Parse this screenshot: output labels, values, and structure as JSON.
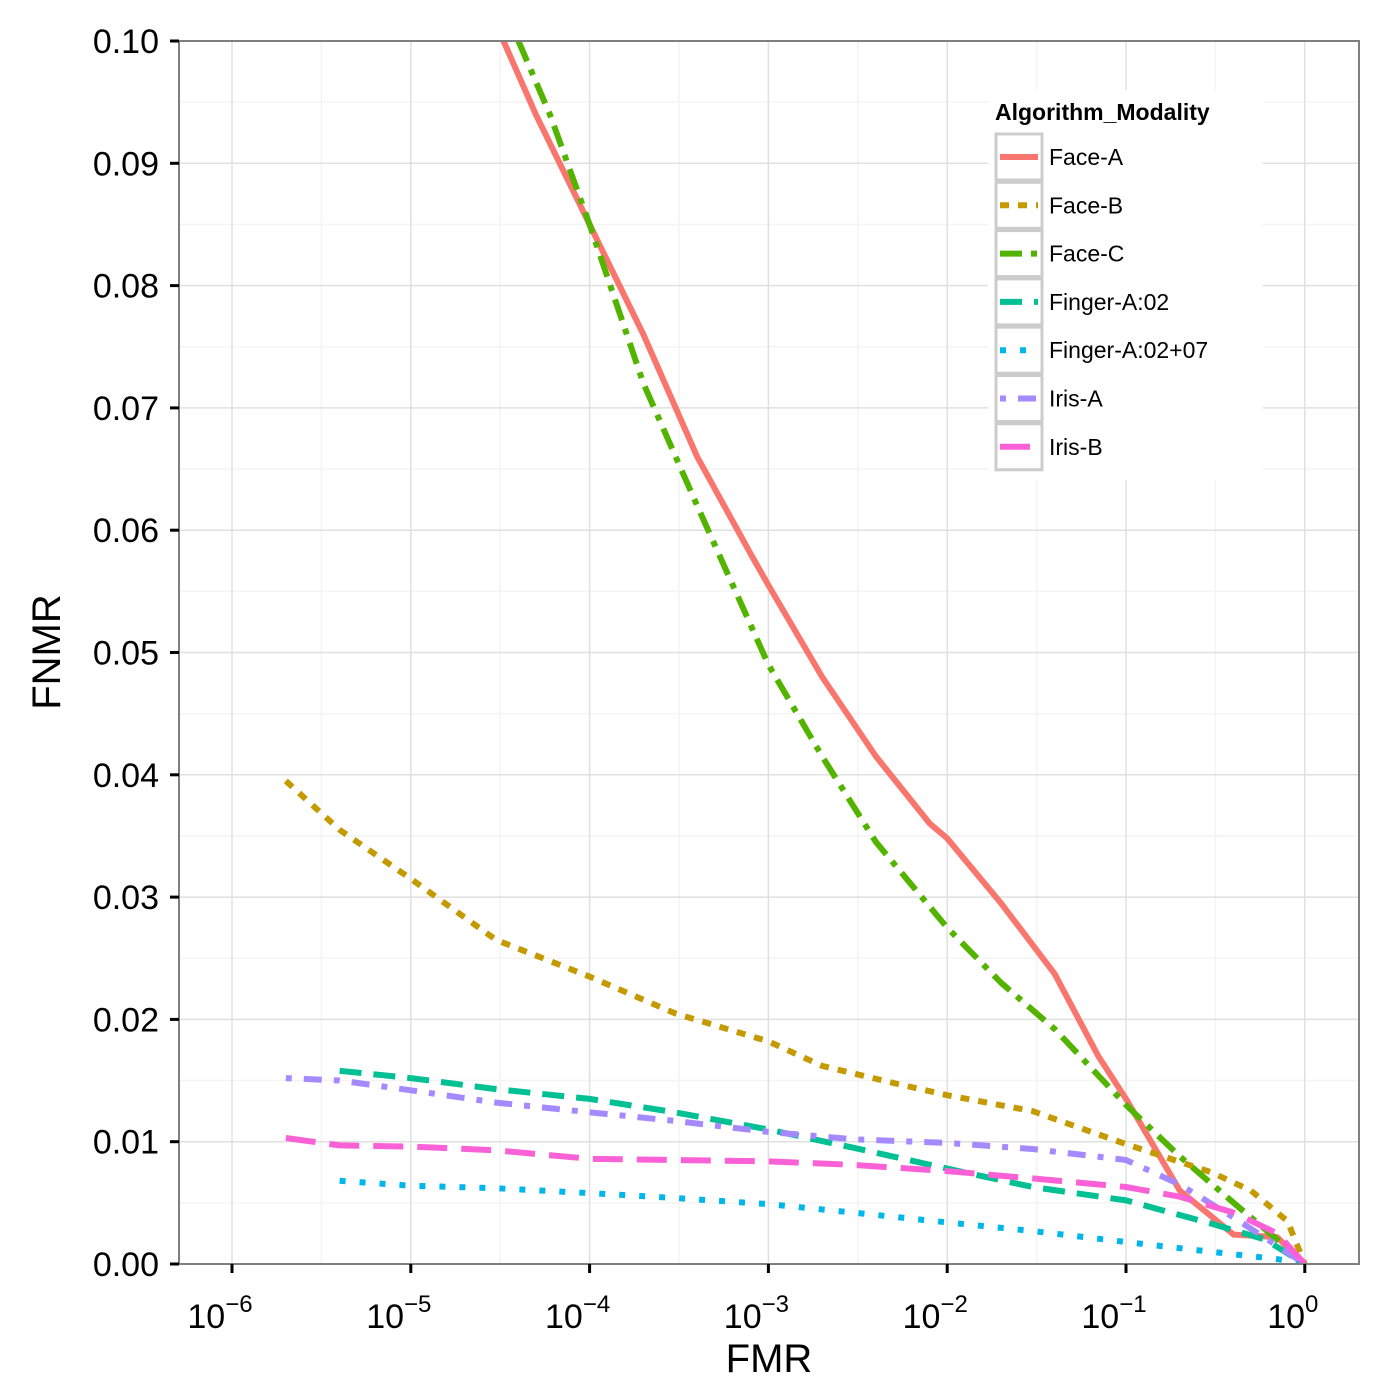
{
  "chart_data": {
    "type": "line",
    "title": "",
    "xlabel": "FMR",
    "ylabel": "FNMR",
    "x_scale": "log10",
    "xlim": [
      3e-07,
      2.0
    ],
    "ylim": [
      0,
      0.1
    ],
    "x_ticks": [
      1e-06,
      1e-05,
      0.0001,
      0.001,
      0.01,
      0.1,
      1
    ],
    "x_tick_labels": [
      {
        "base": "10",
        "exp": "−6"
      },
      {
        "base": "10",
        "exp": "−5"
      },
      {
        "base": "10",
        "exp": "−4"
      },
      {
        "base": "10",
        "exp": "−3"
      },
      {
        "base": "10",
        "exp": "−2"
      },
      {
        "base": "10",
        "exp": "−1"
      },
      {
        "base": "10",
        "exp": "0"
      }
    ],
    "y_ticks": [
      0.0,
      0.01,
      0.02,
      0.03,
      0.04,
      0.05,
      0.06,
      0.07,
      0.08,
      0.09,
      0.1
    ],
    "y_tick_labels": [
      "0.00",
      "0.01",
      "0.02",
      "0.03",
      "0.04",
      "0.05",
      "0.06",
      "0.07",
      "0.08",
      "0.09",
      "0.10"
    ],
    "grid": true,
    "legend": {
      "title": "Algorithm_Modality",
      "placement": "top-right"
    },
    "series": [
      {
        "name": "Face-A",
        "color": "#F8766D",
        "dash": "solid",
        "x": [
          3.3e-05,
          5e-05,
          0.0001,
          0.0002,
          0.0004,
          0.0008,
          0.001,
          0.002,
          0.004,
          0.008,
          0.01,
          0.02,
          0.04,
          0.07,
          0.1,
          0.2,
          0.4,
          0.7,
          1.0
        ],
        "y": [
          0.1,
          0.094,
          0.085,
          0.076,
          0.066,
          0.058,
          0.0555,
          0.048,
          0.0415,
          0.036,
          0.0348,
          0.0295,
          0.0237,
          0.017,
          0.0135,
          0.006,
          0.0024,
          0.0022,
          0.0
        ]
      },
      {
        "name": "Face-B",
        "color": "#C49A00",
        "dash": "short",
        "x": [
          2e-06,
          4e-06,
          1e-05,
          3e-05,
          0.0001,
          0.0003,
          0.001,
          0.002,
          0.005,
          0.01,
          0.03,
          0.1,
          0.3,
          0.5,
          0.8,
          1.0
        ],
        "y": [
          0.0395,
          0.0355,
          0.0315,
          0.0265,
          0.0235,
          0.0205,
          0.0182,
          0.0162,
          0.0148,
          0.0138,
          0.0125,
          0.0098,
          0.0075,
          0.006,
          0.0035,
          0.0
        ]
      },
      {
        "name": "Face-C",
        "color": "#53B400",
        "dash": "longshort",
        "x": [
          4e-05,
          6e-05,
          0.0001,
          0.0002,
          0.0004,
          0.001,
          0.002,
          0.004,
          0.01,
          0.02,
          0.04,
          0.1,
          0.2,
          0.4,
          0.7,
          1.0
        ],
        "y": [
          0.1,
          0.094,
          0.085,
          0.072,
          0.062,
          0.049,
          0.0415,
          0.0345,
          0.0275,
          0.023,
          0.0192,
          0.013,
          0.0088,
          0.005,
          0.002,
          0.0
        ]
      },
      {
        "name": "Finger-A:02",
        "color": "#00C094",
        "dash": "long",
        "x": [
          4e-06,
          1e-05,
          3e-05,
          0.0001,
          0.0003,
          0.001,
          0.003,
          0.01,
          0.03,
          0.1,
          0.3,
          0.6,
          1.0
        ],
        "y": [
          0.0158,
          0.0152,
          0.0143,
          0.0135,
          0.0124,
          0.011,
          0.0095,
          0.0078,
          0.0063,
          0.0052,
          0.0033,
          0.002,
          0.0
        ]
      },
      {
        "name": "Finger-A:02+07",
        "color": "#00B6EB",
        "dash": "dotted",
        "x": [
          4e-06,
          1e-05,
          3e-05,
          0.0001,
          0.0003,
          0.001,
          0.003,
          0.01,
          0.03,
          0.1,
          0.3,
          0.7,
          1.0
        ],
        "y": [
          0.0068,
          0.0064,
          0.0062,
          0.0058,
          0.0054,
          0.0049,
          0.0042,
          0.0034,
          0.0027,
          0.0018,
          0.001,
          0.0004,
          0.0
        ]
      },
      {
        "name": "Iris-A",
        "color": "#A58AFF",
        "dash": "dotdash",
        "x": [
          2e-06,
          4e-06,
          1e-05,
          3e-05,
          0.0001,
          0.0003,
          0.001,
          0.003,
          0.01,
          0.03,
          0.1,
          0.2,
          0.4,
          0.7,
          1.0
        ],
        "y": [
          0.0152,
          0.015,
          0.0142,
          0.0132,
          0.0124,
          0.0117,
          0.0108,
          0.0102,
          0.0099,
          0.0094,
          0.0085,
          0.0065,
          0.0038,
          0.0015,
          0.0
        ]
      },
      {
        "name": "Iris-B",
        "color": "#FB61D7",
        "dash": "longdash",
        "x": [
          2e-06,
          4e-06,
          1e-05,
          3e-05,
          0.0001,
          0.0003,
          0.001,
          0.003,
          0.01,
          0.03,
          0.1,
          0.2,
          0.4,
          0.7,
          1.0
        ],
        "y": [
          0.0103,
          0.0097,
          0.0096,
          0.0093,
          0.0086,
          0.0085,
          0.0084,
          0.0081,
          0.0076,
          0.007,
          0.0063,
          0.0055,
          0.0042,
          0.0025,
          0.0
        ]
      }
    ]
  }
}
